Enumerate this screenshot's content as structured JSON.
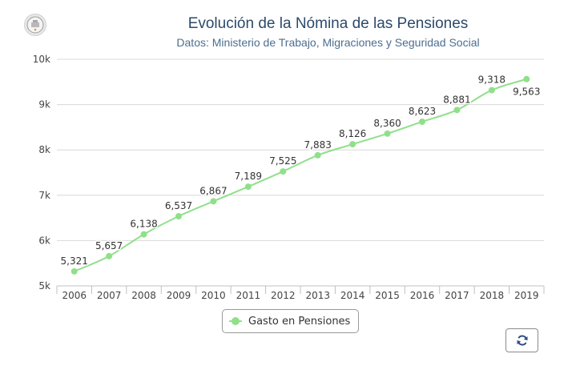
{
  "header": {
    "title": "Evolución de la Nómina de las Pensiones",
    "subtitle": "Datos: Ministerio de Trabajo, Migraciones y Seguridad Social"
  },
  "colors": {
    "series": "#90e08a",
    "grid": "#d8d8d8",
    "axis_text": "#444444",
    "title": "#2c4a6b"
  },
  "icons": {
    "logo": "seal-logo-icon",
    "refresh": "refresh-icon"
  },
  "chart_data": {
    "type": "line",
    "x": [
      "2006",
      "2007",
      "2008",
      "2009",
      "2010",
      "2011",
      "2012",
      "2013",
      "2014",
      "2015",
      "2016",
      "2017",
      "2018",
      "2019"
    ],
    "series": [
      {
        "name": "Gasto en Pensiones",
        "values": [
          5321,
          5657,
          6138,
          6537,
          6867,
          7189,
          7525,
          7883,
          8126,
          8360,
          8623,
          8881,
          9318,
          9563
        ],
        "labels": [
          "5,321",
          "5,657",
          "6,138",
          "6,537",
          "6,867",
          "7,189",
          "7,525",
          "7,883",
          "8,126",
          "8,360",
          "8,623",
          "8,881",
          "9,318",
          "9,563"
        ]
      }
    ],
    "ylim": [
      5000,
      10000
    ],
    "yticks": [
      5000,
      6000,
      7000,
      8000,
      9000,
      10000
    ],
    "ytick_labels": [
      "5k",
      "6k",
      "7k",
      "8k",
      "9k",
      "10k"
    ],
    "grid": true,
    "legend_position": "bottom-center"
  }
}
